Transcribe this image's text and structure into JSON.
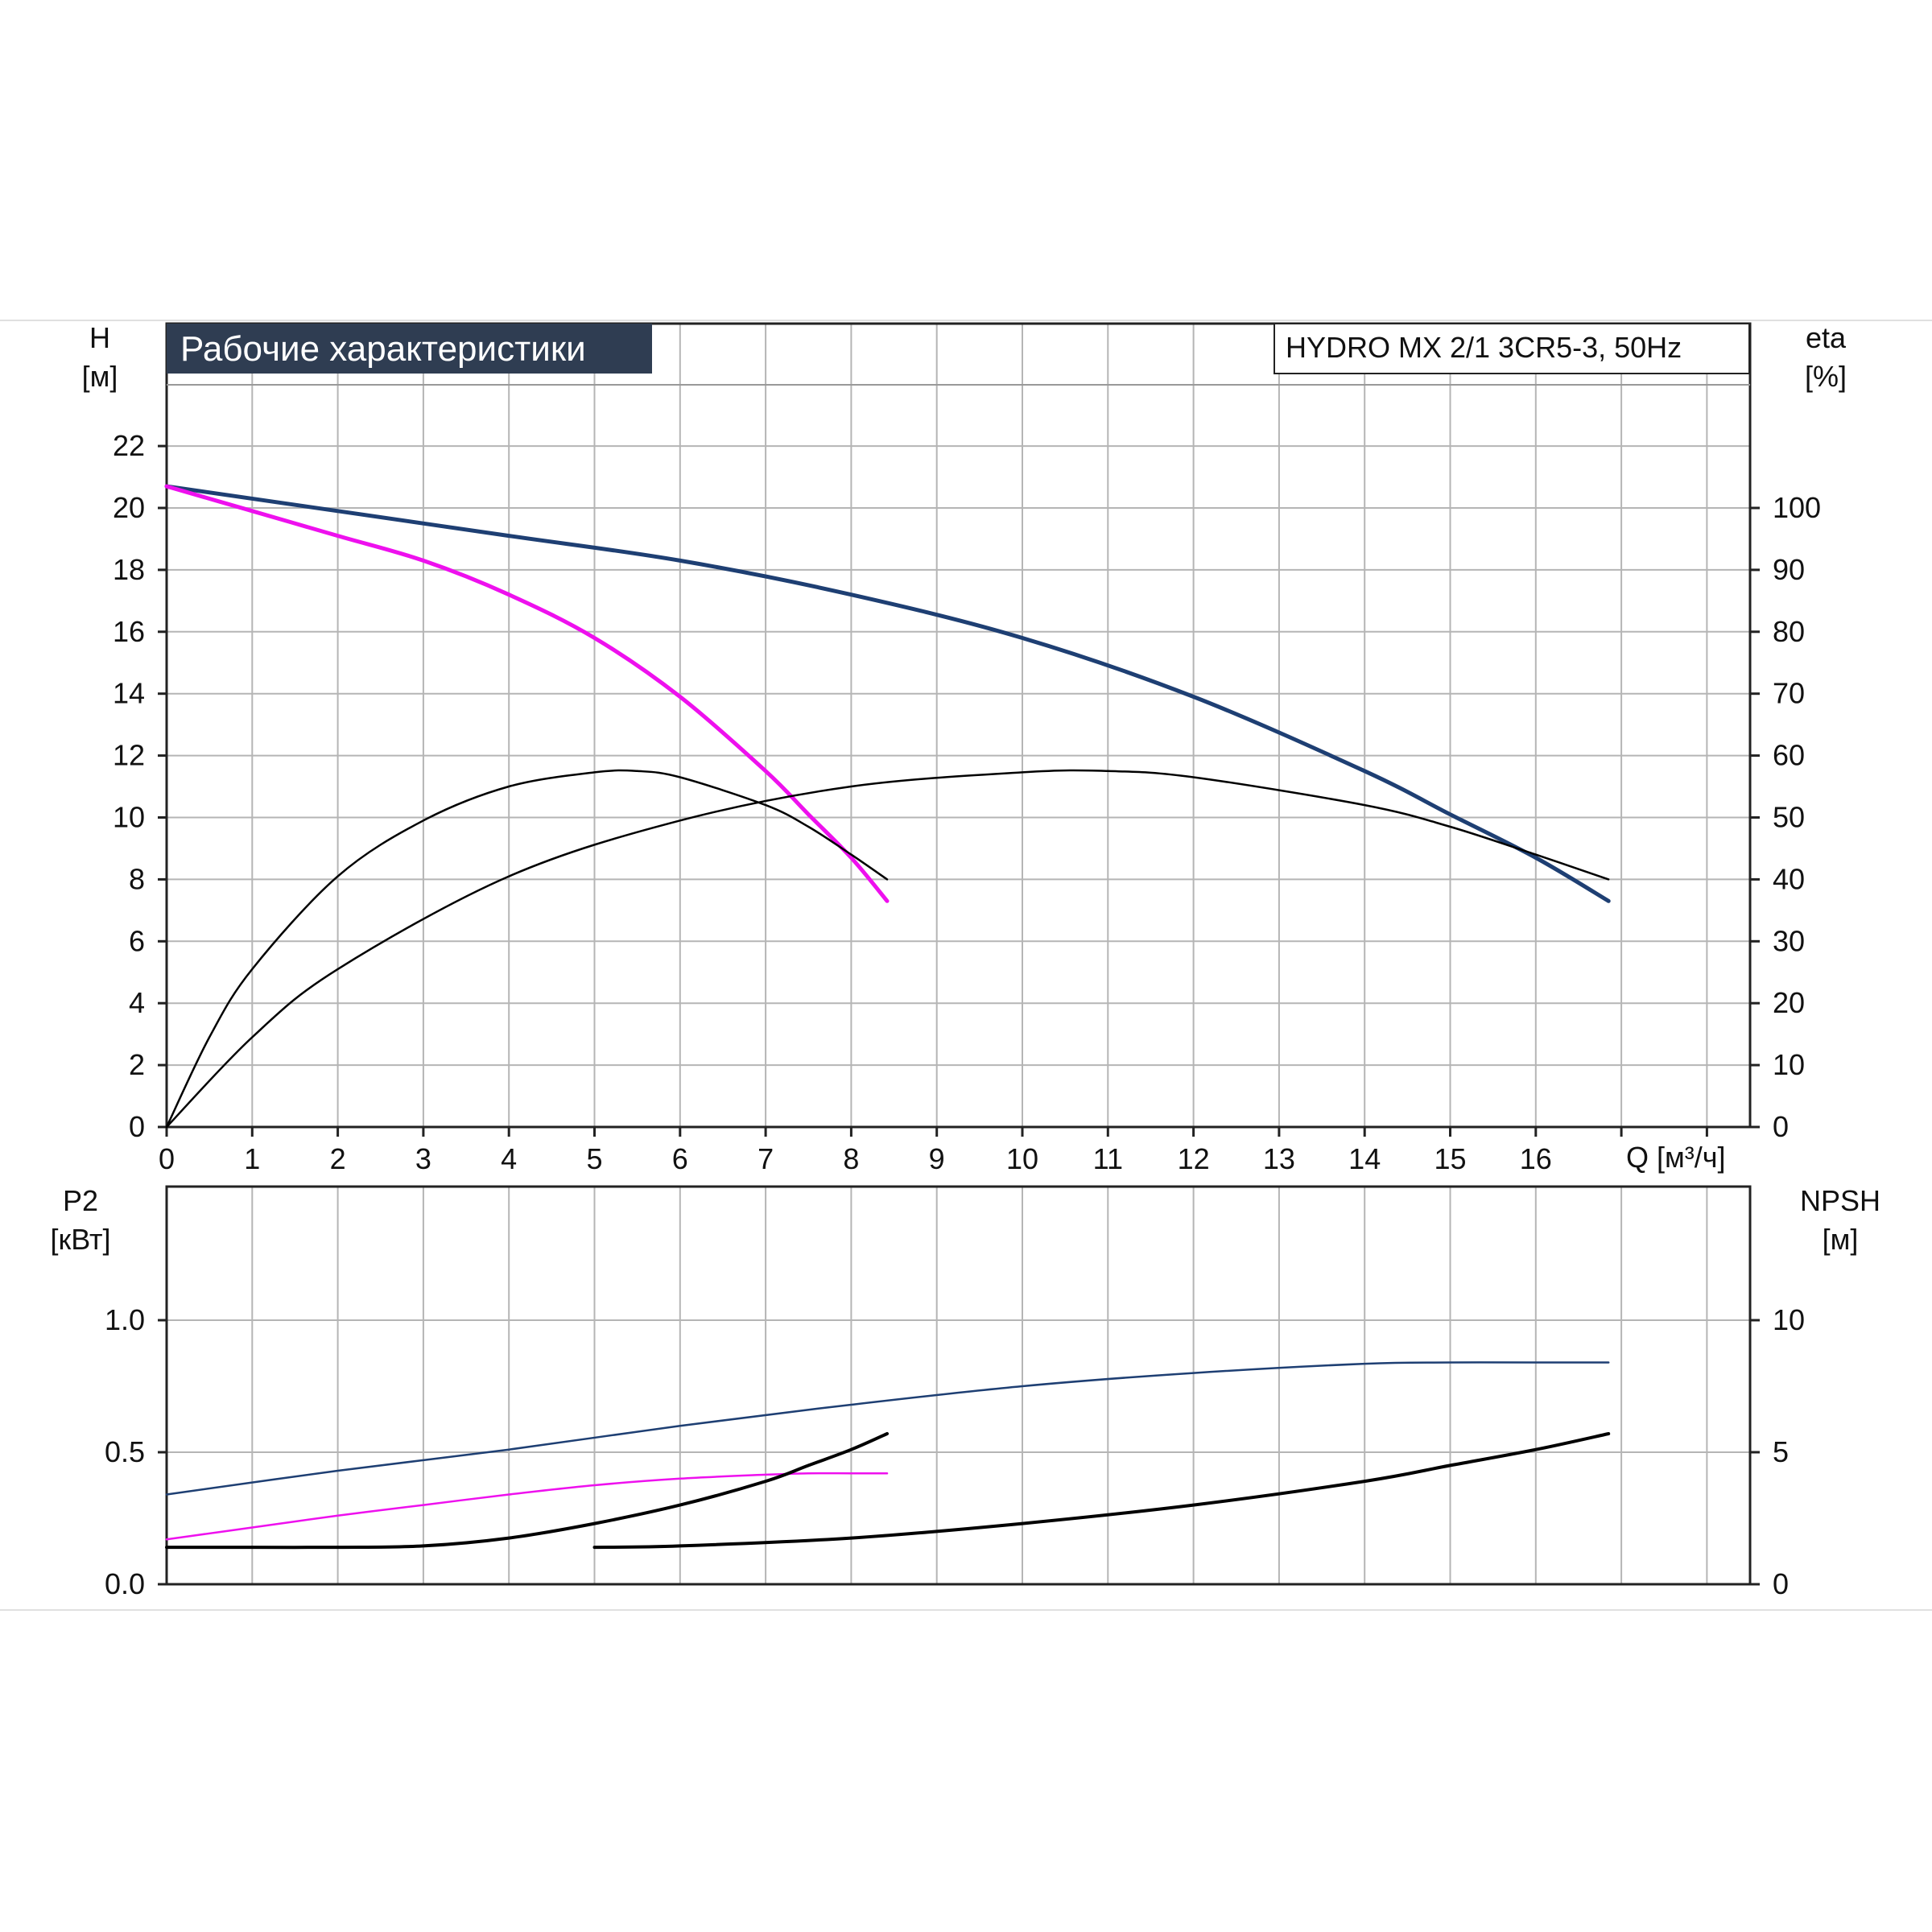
{
  "colors": {
    "blue": "#1e3f73",
    "magenta": "#ee10ee",
    "black": "#000000",
    "title_bg": "#2f3d52",
    "grid": "#b5b5b5"
  },
  "chart_data": [
    {
      "type": "line",
      "title": "Рабочие характеристики",
      "subtitle": "HYDRO MX 2/1 3CR5-3, 50Hz",
      "xlabel": "Q [м³/ч]",
      "ylabel": "H",
      "ylabel_unit": "[м]",
      "y2label": "eta",
      "y2label_unit": "[%]",
      "xlim": [
        0,
        18.5
      ],
      "ylim": [
        0,
        24
      ],
      "y2lim": [
        0,
        120
      ],
      "grid": true,
      "x_ticks": [
        0,
        1,
        2,
        3,
        4,
        5,
        6,
        7,
        8,
        9,
        10,
        11,
        12,
        13,
        14,
        15,
        16
      ],
      "y_ticks": [
        0,
        2,
        4,
        6,
        8,
        10,
        12,
        14,
        16,
        18,
        20,
        22
      ],
      "y2_ticks": [
        0,
        10,
        20,
        30,
        40,
        50,
        60,
        70,
        80,
        90,
        100
      ],
      "series": [
        {
          "axis": "left",
          "color": "#1e3f73",
          "width": 5,
          "x": [
            0,
            2,
            4,
            6,
            8,
            10,
            12,
            14,
            15,
            16,
            16.85
          ],
          "y": [
            20.7,
            19.9,
            19.1,
            18.3,
            17.2,
            15.8,
            13.9,
            11.5,
            10.1,
            8.7,
            7.3
          ]
        },
        {
          "axis": "left",
          "color": "#ee10ee",
          "width": 5,
          "x": [
            0,
            1,
            2,
            3,
            4,
            5,
            6,
            7,
            7.5,
            8,
            8.42
          ],
          "y": [
            20.7,
            19.9,
            19.1,
            18.3,
            17.2,
            15.8,
            13.9,
            11.5,
            10.1,
            8.7,
            7.3
          ]
        },
        {
          "axis": "right",
          "color": "#000000",
          "width": 2.5,
          "x": [
            0,
            0.5,
            1,
            2,
            3,
            4,
            5,
            5.5,
            6,
            7,
            7.5,
            8,
            8.42
          ],
          "y": [
            0,
            14.5,
            25.5,
            40.5,
            49.5,
            55,
            57.3,
            57.5,
            56.5,
            52,
            48.5,
            44,
            40
          ]
        },
        {
          "axis": "right",
          "color": "#000000",
          "width": 2.5,
          "x": [
            0,
            1,
            2,
            4,
            6,
            8,
            10,
            11,
            12,
            14,
            15,
            16,
            16.85
          ],
          "y": [
            0,
            14.5,
            25.5,
            40.5,
            49.5,
            55,
            57.3,
            57.5,
            56.5,
            52,
            48.5,
            44,
            40
          ]
        }
      ]
    },
    {
      "type": "line",
      "xlabel": "",
      "ylabel": "P2",
      "ylabel_unit": "[кВт]",
      "y2label": "NPSH",
      "y2label_unit": "[м]",
      "xlim": [
        0,
        18.5
      ],
      "ylim": [
        0,
        1.5
      ],
      "y2lim": [
        0,
        15
      ],
      "grid": true,
      "y_ticks": [
        "0.0",
        "0.5",
        "1.0"
      ],
      "y2_ticks": [
        0,
        5,
        10
      ],
      "series": [
        {
          "axis": "left",
          "color": "#1e3f73",
          "width": 2.5,
          "x": [
            0,
            2,
            4,
            6,
            8,
            10,
            12,
            14,
            15,
            16,
            16.85
          ],
          "y": [
            0.34,
            0.43,
            0.51,
            0.6,
            0.68,
            0.75,
            0.8,
            0.835,
            0.84,
            0.84,
            0.84
          ]
        },
        {
          "axis": "left",
          "color": "#ee10ee",
          "width": 2.5,
          "x": [
            0,
            1,
            2,
            3,
            4,
            5,
            6,
            7,
            7.5,
            8,
            8.42
          ],
          "y": [
            0.17,
            0.215,
            0.26,
            0.3,
            0.34,
            0.375,
            0.4,
            0.415,
            0.42,
            0.42,
            0.42
          ]
        },
        {
          "axis": "right",
          "color": "#000000",
          "width": 4,
          "x": [
            0,
            1,
            2,
            3,
            4,
            5,
            6,
            7,
            7.5,
            8,
            8.42
          ],
          "y": [
            1.4,
            1.4,
            1.4,
            1.45,
            1.75,
            2.3,
            3.0,
            3.9,
            4.5,
            5.1,
            5.7
          ]
        },
        {
          "axis": "right",
          "color": "#000000",
          "width": 4,
          "x": [
            5,
            6,
            8,
            10,
            12,
            14,
            15,
            16,
            16.85
          ],
          "y": [
            1.4,
            1.45,
            1.75,
            2.3,
            3.0,
            3.9,
            4.5,
            5.1,
            5.7
          ]
        }
      ]
    }
  ]
}
